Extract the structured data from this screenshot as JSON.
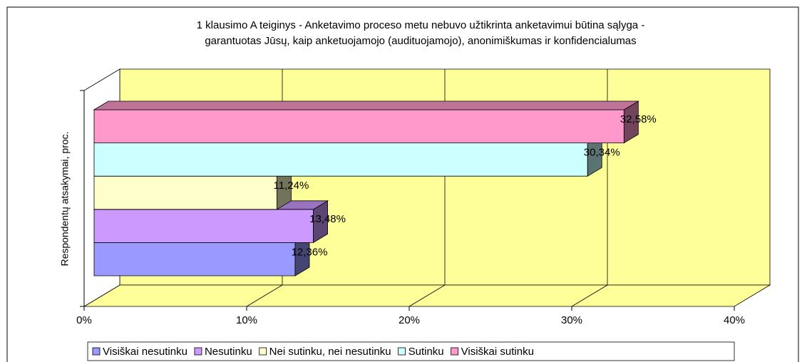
{
  "chart_data": {
    "type": "bar3d_horizontal",
    "title": [
      "1 klausimo A teiginys - Anketavimo proceso metu nebuvo užtikrinta anketavimui būtina sąlyga -",
      "garantuotas Jūsų, kaip anketuojamojo (audituojamojo), anonimiškumas ir konfidencialumas"
    ],
    "y_label": "Respondentų atsakymai, proc.",
    "xlim": [
      0,
      40
    ],
    "xticks": [
      {
        "value": 0,
        "label": "0%"
      },
      {
        "value": 10,
        "label": "10%"
      },
      {
        "value": 20,
        "label": "20%"
      },
      {
        "value": 30,
        "label": "30%"
      },
      {
        "value": 40,
        "label": "40%"
      }
    ],
    "grid": true,
    "wall_color": "#ffff99",
    "series": [
      {
        "name": "Visiškai nesutinku",
        "color": "#9999ff",
        "values": [
          12.36
        ],
        "value_labels": [
          "12,36%"
        ]
      },
      {
        "name": "Nesutinku",
        "color": "#cc99ff",
        "values": [
          13.48
        ],
        "value_labels": [
          "13,48%"
        ]
      },
      {
        "name": "Nei sutinku, nei nesutinku",
        "color": "#ffffcc",
        "values": [
          11.24
        ],
        "value_labels": [
          "11,24%"
        ]
      },
      {
        "name": "Sutinku",
        "color": "#ccffff",
        "values": [
          30.34
        ],
        "value_labels": [
          "30,34%"
        ]
      },
      {
        "name": "Visiškai sutinku",
        "color": "#ff99cc",
        "values": [
          32.58
        ],
        "value_labels": [
          "32,58%"
        ]
      }
    ]
  }
}
